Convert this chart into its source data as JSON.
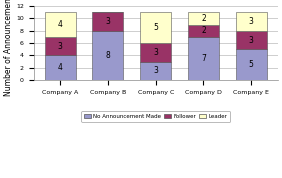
{
  "categories": [
    "Company A",
    "Company B",
    "Company C",
    "Company D",
    "Company E"
  ],
  "no_announcement": [
    4,
    8,
    3,
    7,
    5
  ],
  "follower": [
    3,
    3,
    3,
    2,
    3
  ],
  "leader": [
    4,
    0,
    5,
    2,
    3
  ],
  "bar_color_no": "#9999cc",
  "bar_color_follower": "#993366",
  "bar_color_leader": "#ffffcc",
  "ylabel": "Number of Announcements",
  "ylim": [
    0,
    12
  ],
  "yticks": [
    0,
    2,
    4,
    6,
    8,
    10,
    12
  ],
  "legend_labels": [
    "No Announcement Made",
    "Follower",
    "Leader"
  ],
  "label_fontsize": 5.5,
  "tick_fontsize": 4.5,
  "ylabel_fontsize": 5.5,
  "bar_width": 0.65
}
